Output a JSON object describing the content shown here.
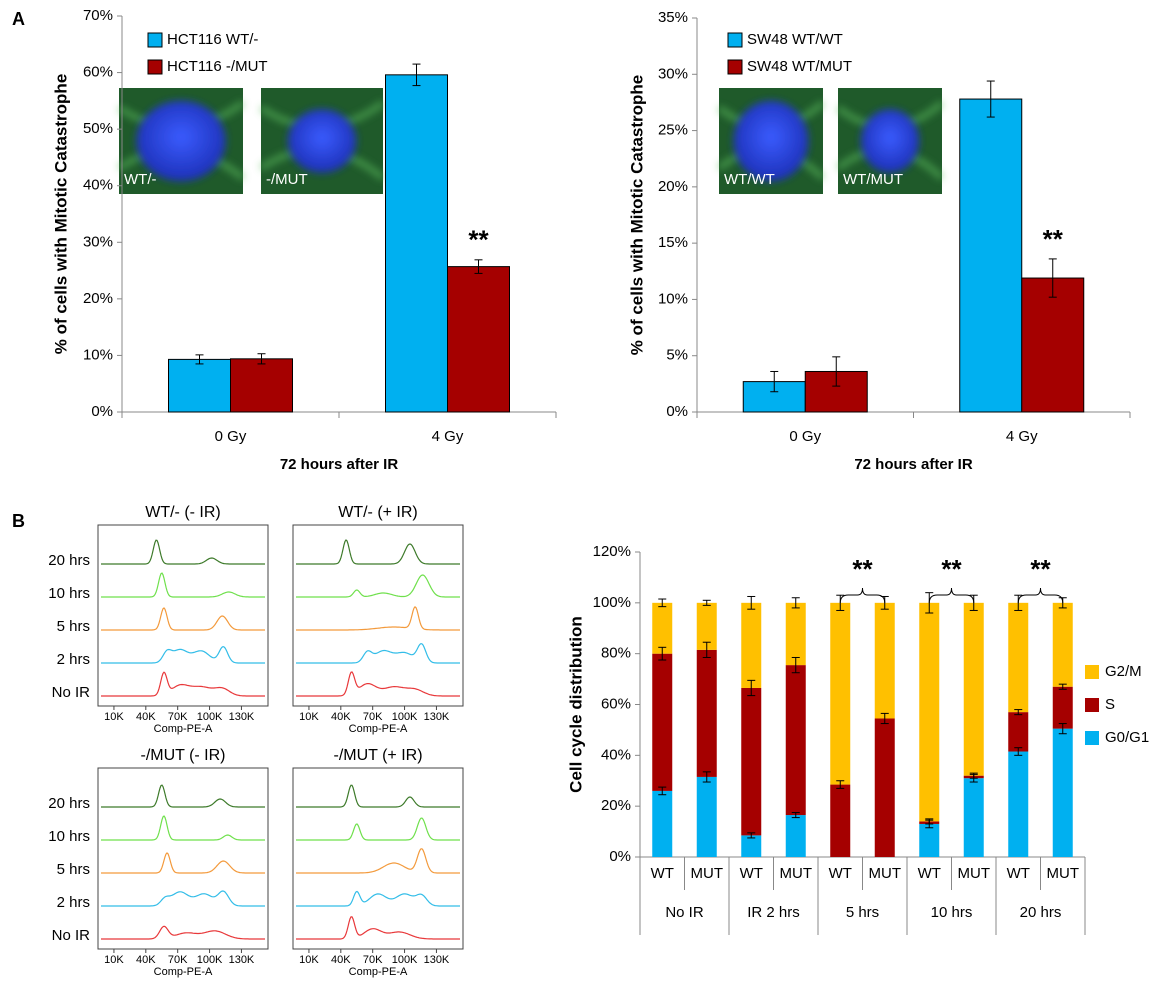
{
  "panel_labels": [
    "A",
    "B"
  ],
  "chart_data": [
    {
      "type": "bar",
      "ylabel": "% of cells with Mitotic Catastrophe",
      "xlabel": "72 hours after IR",
      "categories": [
        "0 Gy",
        "4 Gy"
      ],
      "series": [
        {
          "name": "HCT116 WT/-",
          "color": "#00b0f0",
          "values": [
            9.3,
            59.6
          ],
          "errors": [
            0.8,
            1.9
          ]
        },
        {
          "name": "HCT116 -/MUT",
          "color": "#a50000",
          "values": [
            9.4,
            25.7
          ],
          "errors": [
            0.9,
            1.2
          ]
        }
      ],
      "ylim": [
        0,
        70
      ],
      "yticks": [
        {
          "value": 0,
          "label": "0%"
        },
        {
          "value": 10,
          "label": "10%"
        },
        {
          "value": 20,
          "label": "20%"
        },
        {
          "value": 30,
          "label": "30%"
        },
        {
          "value": 40,
          "label": "40%"
        },
        {
          "value": 50,
          "label": "50%"
        },
        {
          "value": 60,
          "label": "60%"
        },
        {
          "value": 70,
          "label": "70%"
        }
      ],
      "annotations": [
        "**"
      ],
      "insets": [
        "WT/-",
        "-/MUT"
      ]
    },
    {
      "type": "bar",
      "ylabel": "% of cells with Mitotic Catastrophe",
      "xlabel": "72 hours after IR",
      "categories": [
        "0 Gy",
        "4 Gy"
      ],
      "series": [
        {
          "name": "SW48 WT/WT",
          "color": "#00b0f0",
          "values": [
            2.7,
            27.8
          ],
          "errors": [
            0.9,
            1.6
          ]
        },
        {
          "name": "SW48 WT/MUT",
          "color": "#a50000",
          "values": [
            3.6,
            11.9
          ],
          "errors": [
            1.3,
            1.7
          ]
        }
      ],
      "ylim": [
        0,
        35
      ],
      "yticks": [
        {
          "value": 0,
          "label": "0%"
        },
        {
          "value": 5,
          "label": "5%"
        },
        {
          "value": 10,
          "label": "10%"
        },
        {
          "value": 15,
          "label": "15%"
        },
        {
          "value": 20,
          "label": "20%"
        },
        {
          "value": 25,
          "label": "25%"
        },
        {
          "value": 30,
          "label": "30%"
        },
        {
          "value": 35,
          "label": "35%"
        }
      ],
      "annotations": [
        "**"
      ],
      "insets": [
        "WT/WT",
        "WT/MUT"
      ]
    },
    {
      "type": "stacked_bar",
      "ylabel": "Cell cycle distribution",
      "categories": [
        "WT",
        "MUT",
        "WT",
        "MUT",
        "WT",
        "MUT",
        "WT",
        "MUT",
        "WT",
        "MUT"
      ],
      "groups": [
        "No IR",
        "IR 2 hrs",
        "5 hrs",
        "10 hrs",
        "20 hrs"
      ],
      "series": [
        {
          "name": "G0/G1",
          "color": "#00b0f0",
          "values": [
            26,
            31.5,
            8.5,
            16.5,
            0,
            0,
            13,
            31,
            41.5,
            50.5
          ],
          "errors": [
            1.5,
            2,
            1,
            1,
            null,
            null,
            1.5,
            1.5,
            1.5,
            2
          ]
        },
        {
          "name": "S",
          "color": "#a50000",
          "values": [
            54,
            50,
            58,
            59,
            28.5,
            54.5,
            1,
            1,
            15.5,
            16.5
          ],
          "errors": [
            2.5,
            3,
            3,
            3,
            1.5,
            2,
            1,
            1,
            1,
            1
          ]
        },
        {
          "name": "G2/M",
          "color": "#ffc000",
          "values": [
            20,
            18.5,
            33.5,
            24.5,
            71.5,
            45.5,
            86,
            68,
            43,
            33
          ],
          "errors": [
            1.5,
            1,
            2.5,
            2,
            3,
            2.5,
            4,
            3,
            3,
            2
          ]
        }
      ],
      "ylim": [
        0,
        120
      ],
      "yticks": [
        {
          "value": 0,
          "label": "0%"
        },
        {
          "value": 20,
          "label": "20%"
        },
        {
          "value": 40,
          "label": "40%"
        },
        {
          "value": 60,
          "label": "60%"
        },
        {
          "value": 80,
          "label": "80%"
        },
        {
          "value": 100,
          "label": "100%"
        },
        {
          "value": 120,
          "label": "120%"
        }
      ],
      "annotations": [
        "**",
        "**",
        "**"
      ]
    },
    {
      "type": "flow",
      "title": "WT/- (- IR)",
      "categories": [
        "20 hrs",
        "10 hrs",
        "5 hrs",
        "2 hrs",
        "No IR"
      ],
      "xlabel": "Comp-PE-A",
      "xlim": [
        -5000,
        155000
      ],
      "xticks": [
        {
          "value": 10000,
          "label": "10K"
        },
        {
          "value": 40000,
          "label": "40K"
        },
        {
          "value": 70000,
          "label": "70K"
        },
        {
          "value": 100000,
          "label": "100K"
        },
        {
          "value": 130000,
          "label": "130K"
        }
      ]
    },
    {
      "type": "flow",
      "title": "WT/- (+ IR)",
      "xlabel": "Comp-PE-A",
      "xlim": [
        -5000,
        155000
      ],
      "xticks": [
        {
          "value": 10000,
          "label": "10K"
        },
        {
          "value": 40000,
          "label": "40K"
        },
        {
          "value": 70000,
          "label": "70K"
        },
        {
          "value": 100000,
          "label": "100K"
        },
        {
          "value": 130000,
          "label": "130K"
        }
      ]
    },
    {
      "type": "flow",
      "title": "-/MUT (- IR)",
      "categories": [
        "20 hrs",
        "10 hrs",
        "5 hrs",
        "2 hrs",
        "No IR"
      ],
      "xlabel": "Comp-PE-A",
      "xlim": [
        -5000,
        155000
      ],
      "xticks": [
        {
          "value": 10000,
          "label": "10K"
        },
        {
          "value": 40000,
          "label": "40K"
        },
        {
          "value": 70000,
          "label": "70K"
        },
        {
          "value": 100000,
          "label": "100K"
        },
        {
          "value": 130000,
          "label": "130K"
        }
      ]
    },
    {
      "type": "flow",
      "title": "-/MUT (+ IR)",
      "xlabel": "Comp-PE-A",
      "xlim": [
        -5000,
        155000
      ],
      "xticks": [
        {
          "value": 10000,
          "label": "10K"
        },
        {
          "value": 40000,
          "label": "40K"
        },
        {
          "value": 70000,
          "label": "70K"
        },
        {
          "value": 100000,
          "label": "100K"
        },
        {
          "value": 130000,
          "label": "130K"
        }
      ]
    }
  ]
}
